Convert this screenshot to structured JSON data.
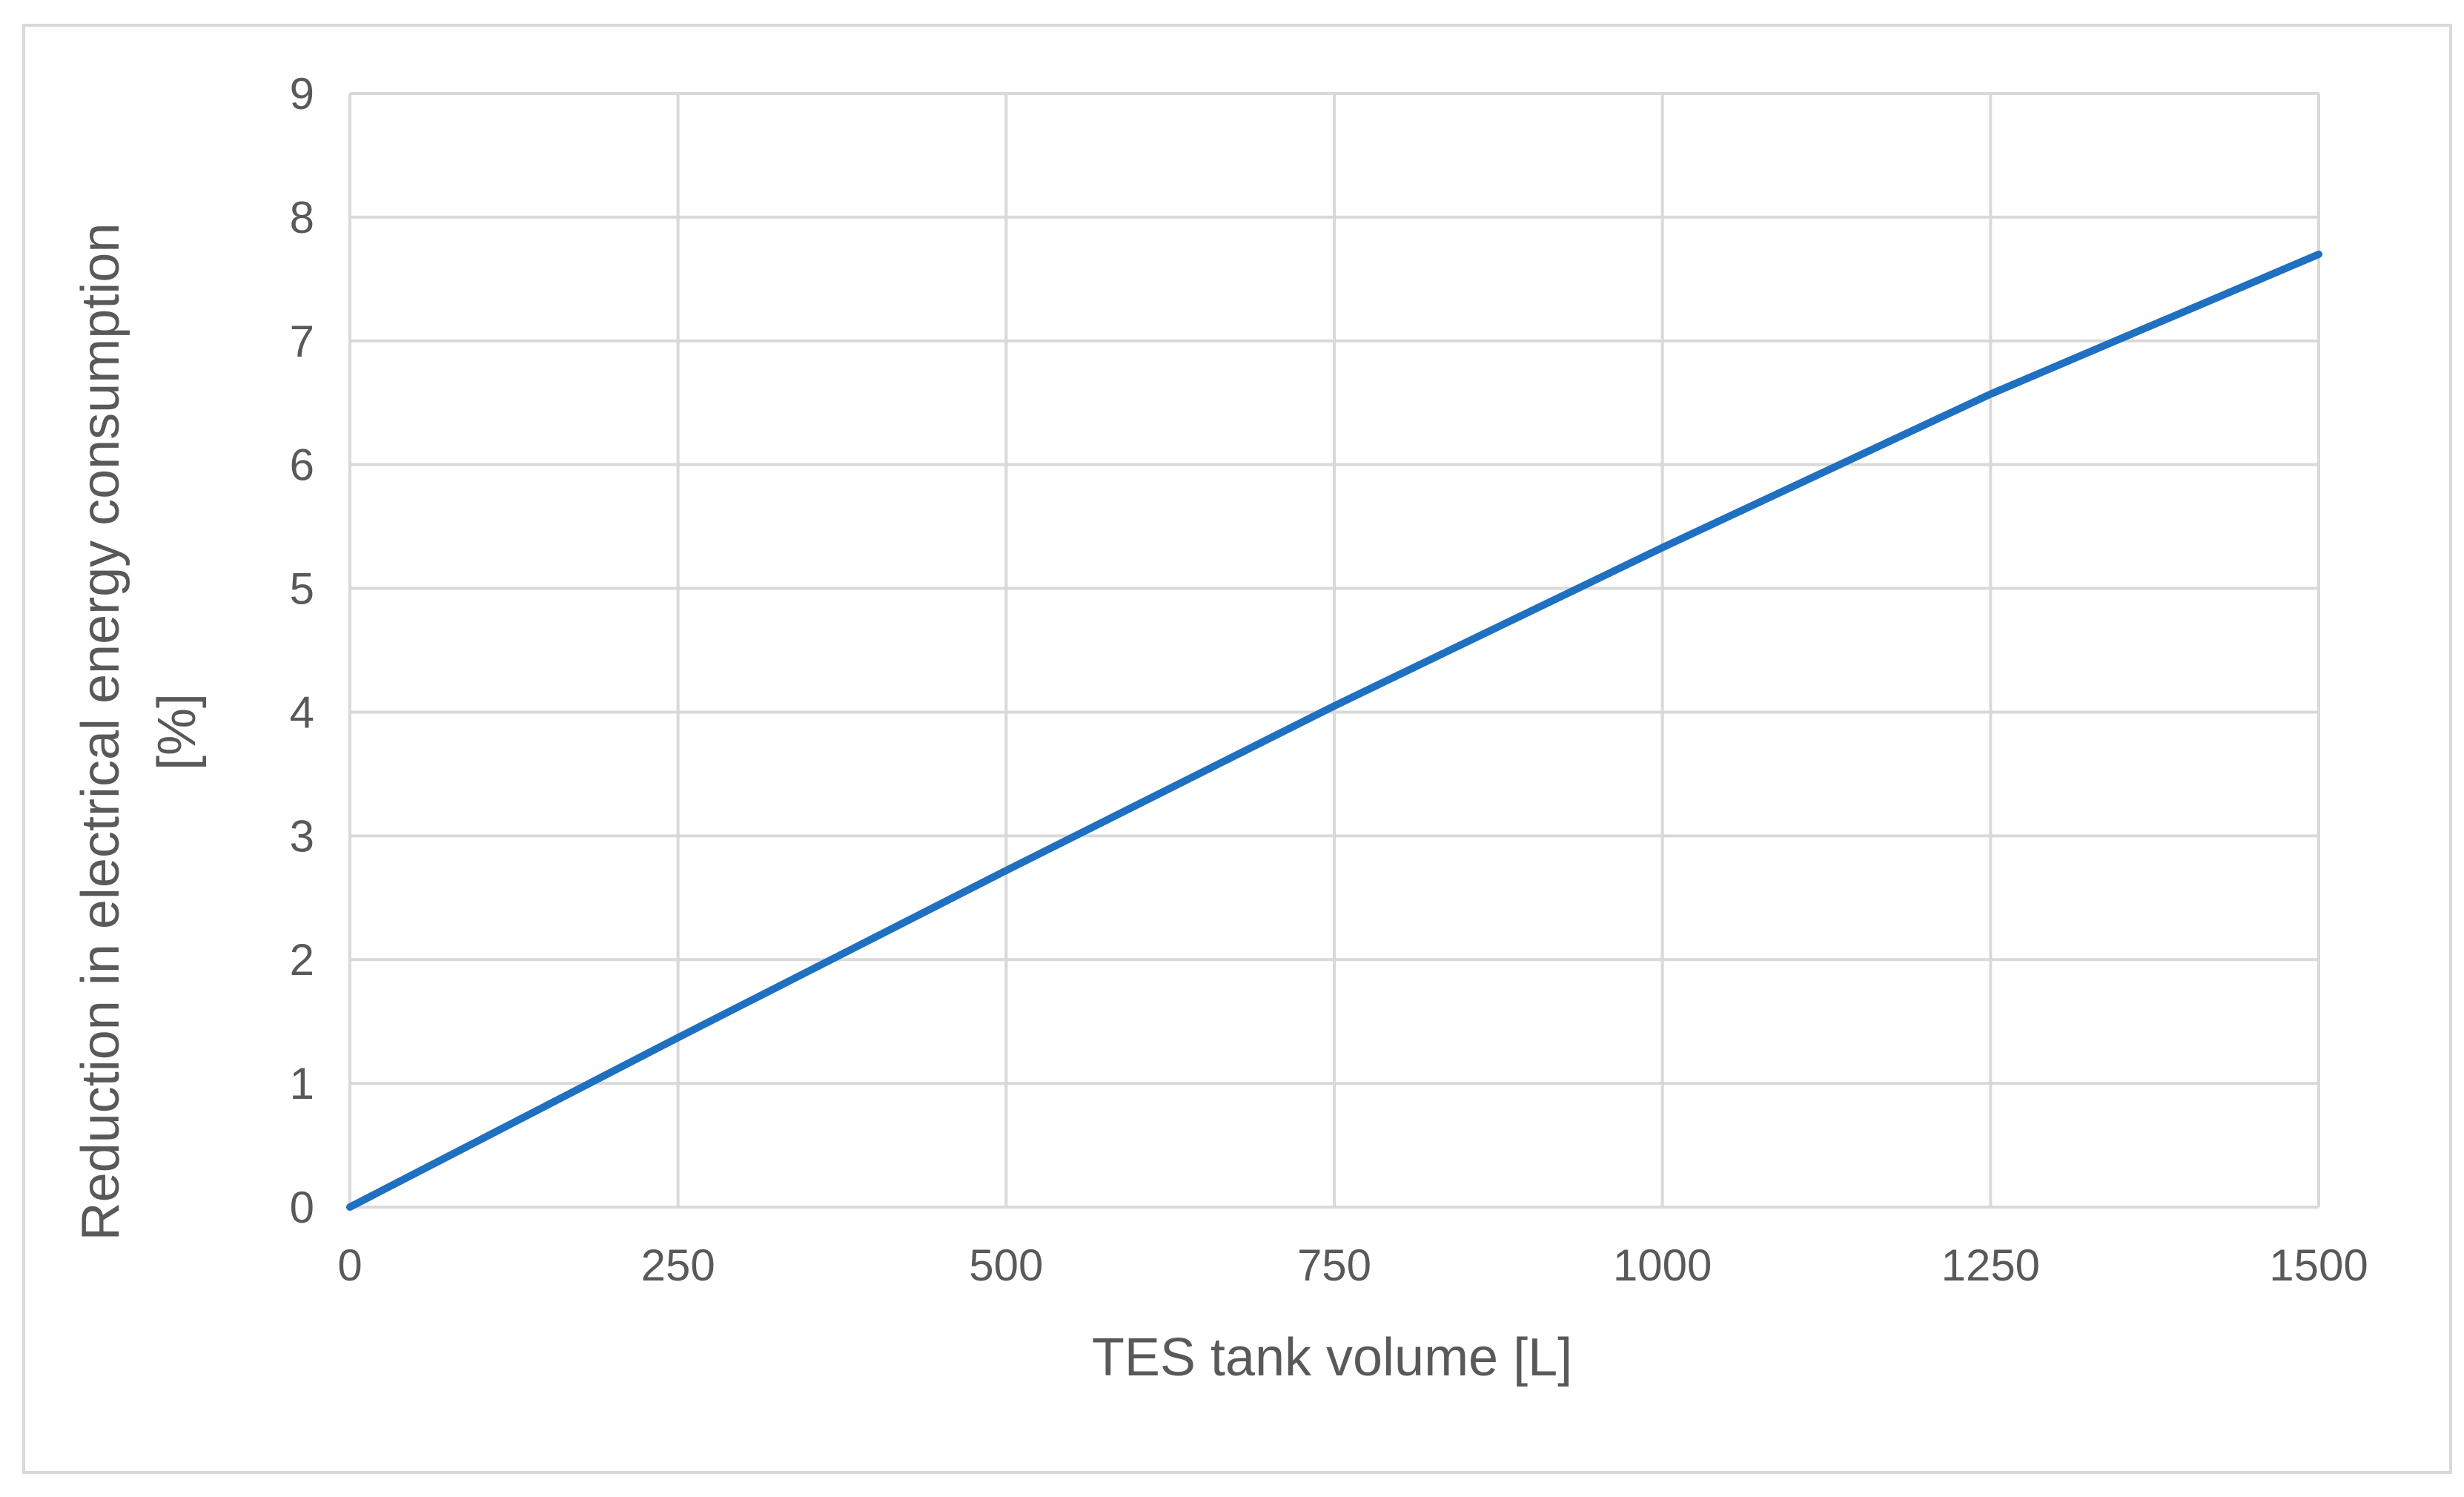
{
  "chart_data": {
    "type": "line",
    "title": "",
    "xlabel": "TES tank volume [L]",
    "ylabel_lines": [
      "Reduction in electrical energy consumption",
      "[%]"
    ],
    "xlim": [
      0,
      1500
    ],
    "ylim": [
      0,
      9
    ],
    "x_ticks": [
      0,
      250,
      500,
      750,
      1000,
      1250,
      1500
    ],
    "y_ticks": [
      0,
      1,
      2,
      3,
      4,
      5,
      6,
      7,
      8,
      9
    ],
    "grid": true,
    "legend": "none",
    "series": [
      {
        "color": "#1f70c1",
        "x": [
          0,
          250,
          500,
          750,
          1000,
          1250,
          1500
        ],
        "y": [
          0,
          1.37,
          2.72,
          4.05,
          5.33,
          6.57,
          7.7
        ]
      }
    ]
  },
  "colors": {
    "grid": "#d9d9d9",
    "text": "#595959",
    "line": "#1f70c1"
  }
}
